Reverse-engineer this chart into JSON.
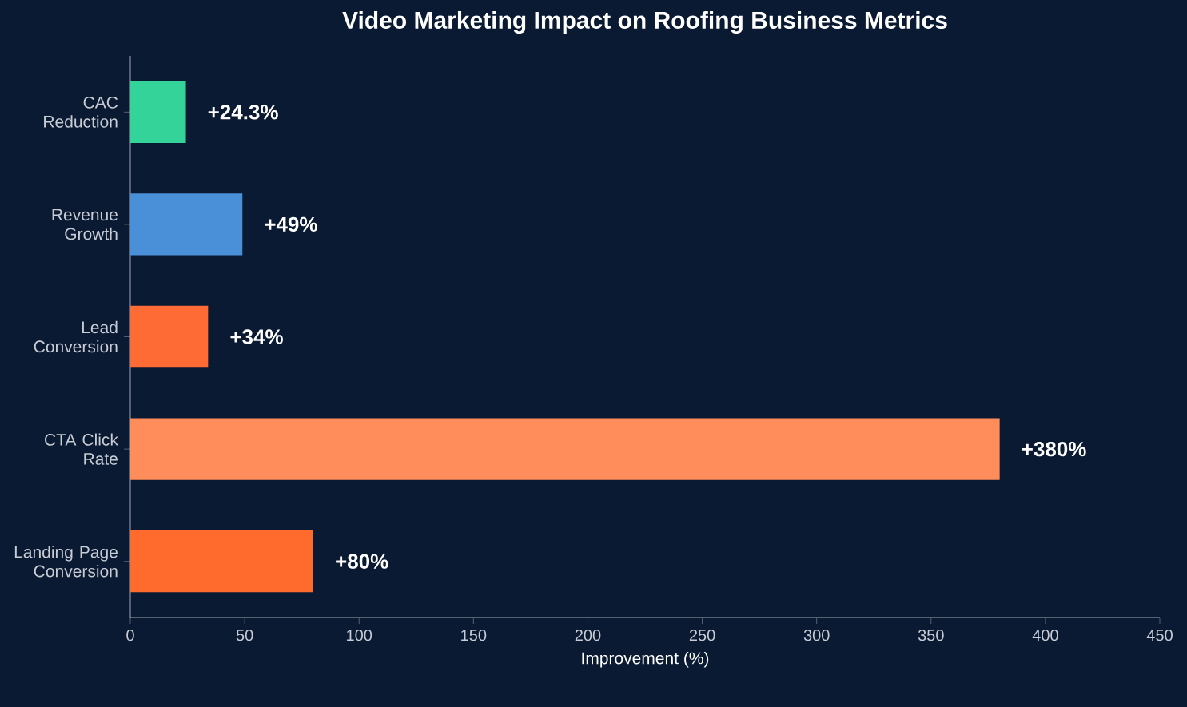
{
  "chart_data": {
    "type": "bar",
    "orientation": "horizontal",
    "title": "Video Marketing Impact on Roofing Business Metrics",
    "xlabel": "Improvement (%)",
    "categories": [
      "CAC Reduction",
      "Revenue Growth",
      "Lead Conversion",
      "CTA Click Rate",
      "Landing Page Conversion"
    ],
    "values": [
      24.3,
      49,
      34,
      380,
      80
    ],
    "colors": [
      "#34d399",
      "#4a90d9",
      "#ff6b35",
      "#ff8c5a",
      "#ff6b2c"
    ],
    "value_labels": [
      "+24.3%",
      "+49%",
      "+34%",
      "+380%",
      "+80%"
    ],
    "xlim": [
      0,
      450
    ],
    "xticks": [
      0,
      50,
      100,
      150,
      200,
      250,
      300,
      350,
      400,
      450
    ],
    "grid": false
  }
}
